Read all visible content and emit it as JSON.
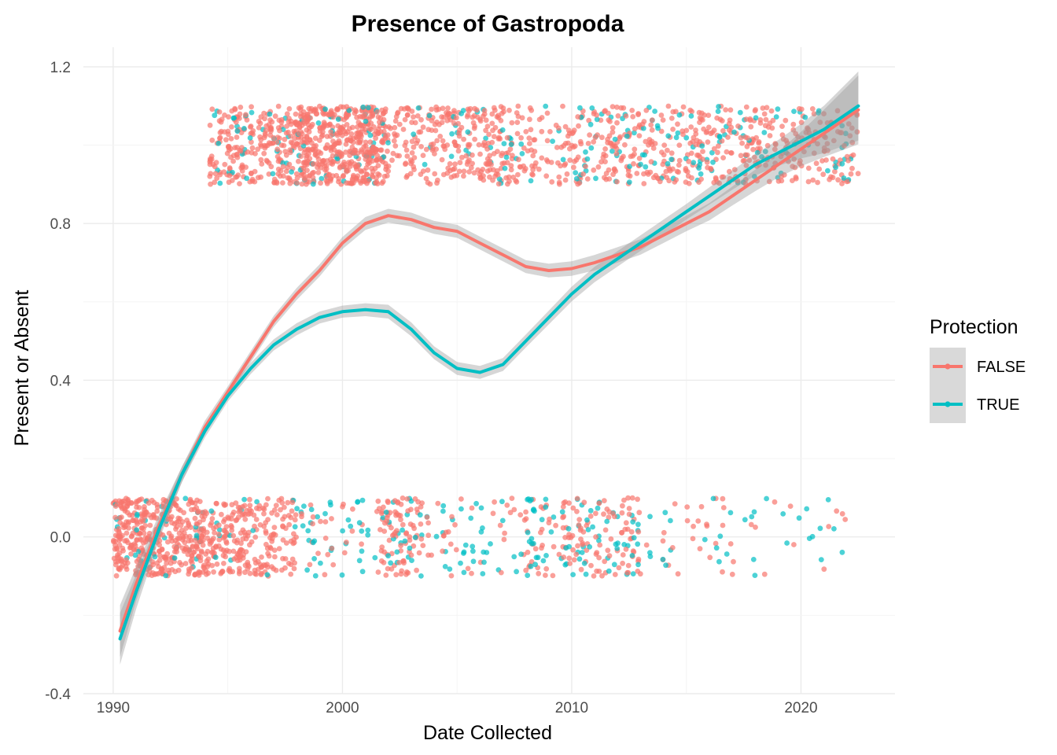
{
  "chart_data": {
    "type": "scatter",
    "title": "Presence of Gastropoda",
    "xlabel": "Date Collected",
    "ylabel": "Present or Absent",
    "xlim": [
      1988.7,
      2024.1
    ],
    "ylim": [
      -0.4,
      1.25
    ],
    "x_ticks": [
      1990,
      2000,
      2010,
      2020
    ],
    "y_ticks": [
      -0.4,
      0.0,
      0.4,
      0.8,
      1.2
    ],
    "y_tick_labels": [
      "-0.4",
      "0.0",
      "0.4",
      "0.8",
      "1.2"
    ],
    "x_tick_labels": [
      "1990",
      "2000",
      "2010",
      "2020"
    ],
    "grid": true,
    "legend": {
      "title": "Protection",
      "position": "right",
      "entries": [
        "FALSE",
        "TRUE"
      ]
    },
    "colors": {
      "FALSE": "#F8766D",
      "TRUE": "#00BFC4",
      "ribbon": "#999999"
    },
    "points": {
      "description_free": true,
      "jitter_height": 0.1,
      "present_ranges": [
        [
          1994.2,
          2022.5
        ]
      ],
      "absent_ranges": [
        [
          1990.0,
          2022.0
        ]
      ]
    },
    "series": [
      {
        "name": "FALSE",
        "x": [
          1990.3,
          1991,
          1992,
          1993,
          1994,
          1995,
          1996,
          1997,
          1998,
          1999,
          2000,
          2001,
          2002,
          2003,
          2004,
          2005,
          2006,
          2007,
          2008,
          2009,
          2010,
          2011,
          2012,
          2013,
          2014,
          2015,
          2016,
          2017,
          2018,
          2019,
          2020,
          2021,
          2022.5
        ],
        "y": [
          -0.24,
          -0.12,
          0.03,
          0.16,
          0.28,
          0.37,
          0.46,
          0.55,
          0.62,
          0.68,
          0.75,
          0.8,
          0.82,
          0.81,
          0.79,
          0.78,
          0.75,
          0.72,
          0.69,
          0.68,
          0.685,
          0.7,
          0.72,
          0.74,
          0.77,
          0.8,
          0.83,
          0.87,
          0.91,
          0.95,
          0.99,
          1.03,
          1.09
        ],
        "se": [
          0.06,
          0.04,
          0.025,
          0.018,
          0.015,
          0.013,
          0.013,
          0.013,
          0.014,
          0.014,
          0.014,
          0.015,
          0.016,
          0.016,
          0.015,
          0.015,
          0.015,
          0.015,
          0.015,
          0.016,
          0.017,
          0.018,
          0.018,
          0.018,
          0.018,
          0.018,
          0.02,
          0.022,
          0.025,
          0.03,
          0.04,
          0.055,
          0.08
        ]
      },
      {
        "name": "TRUE",
        "x": [
          1990.3,
          1991,
          1992,
          1993,
          1994,
          1995,
          1996,
          1997,
          1998,
          1999,
          2000,
          2001,
          2002,
          2003,
          2004,
          2005,
          2006,
          2007,
          2008,
          2009,
          2010,
          2011,
          2012,
          2013,
          2014,
          2015,
          2016,
          2017,
          2018,
          2019,
          2020,
          2021,
          2022.5
        ],
        "y": [
          -0.26,
          -0.14,
          0.02,
          0.16,
          0.27,
          0.36,
          0.43,
          0.49,
          0.53,
          0.56,
          0.575,
          0.58,
          0.575,
          0.53,
          0.47,
          0.43,
          0.42,
          0.44,
          0.5,
          0.56,
          0.62,
          0.67,
          0.71,
          0.75,
          0.79,
          0.83,
          0.87,
          0.91,
          0.95,
          0.98,
          1.01,
          1.04,
          1.1
        ]
      }
    ]
  }
}
